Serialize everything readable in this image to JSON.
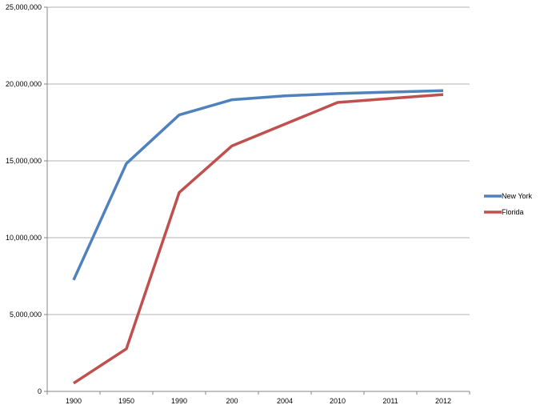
{
  "chart_data": {
    "type": "line",
    "categories": [
      "1900",
      "1950",
      "1990",
      "200",
      "2004",
      "2010",
      "2011",
      "2012"
    ],
    "series": [
      {
        "name": "New York",
        "color": "#4f81bd",
        "values": [
          7250000,
          14830000,
          17990000,
          18980000,
          19230000,
          19380000,
          19480000,
          19570000
        ]
      },
      {
        "name": "Florida",
        "color": "#c0504d",
        "values": [
          530000,
          2770000,
          12940000,
          15980000,
          17390000,
          18800000,
          19060000,
          19320000
        ]
      }
    ],
    "yticks": [
      "0",
      "5,000,000",
      "10,000,000",
      "15,000,000",
      "20,000,000",
      "25,000,000"
    ],
    "ylim": [
      0,
      25000000
    ],
    "grid": true,
    "legend_position": "right",
    "gridline_color": "#b3b3b3",
    "axis_color": "#868686"
  }
}
